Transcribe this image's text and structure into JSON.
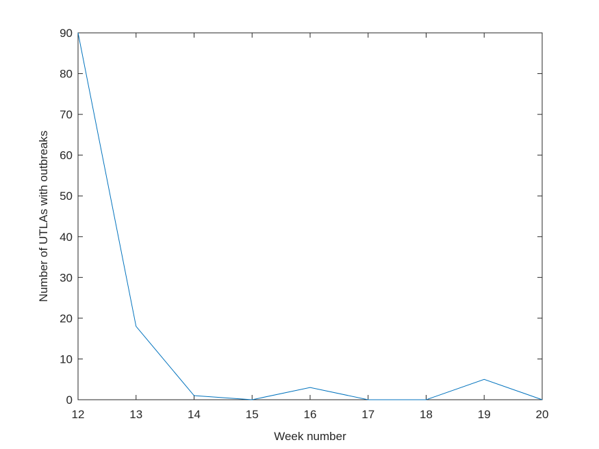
{
  "chart_data": {
    "type": "line",
    "x_label": "Week number",
    "y_label": "Number of UTLAs with outbreaks",
    "x": [
      12,
      13,
      14,
      15,
      16,
      17,
      18,
      19,
      20
    ],
    "series": [
      {
        "color": "#0072bd",
        "values": [
          90,
          18,
          1,
          0,
          3,
          0,
          0,
          5,
          0
        ]
      }
    ],
    "xlim": [
      12,
      20
    ],
    "xticks": [
      12,
      13,
      14,
      15,
      16,
      17,
      18,
      19,
      20
    ],
    "ylim": [
      0,
      90
    ],
    "yticks": [
      0,
      10,
      20,
      30,
      40,
      50,
      60,
      70,
      80,
      90
    ],
    "grid": false
  }
}
